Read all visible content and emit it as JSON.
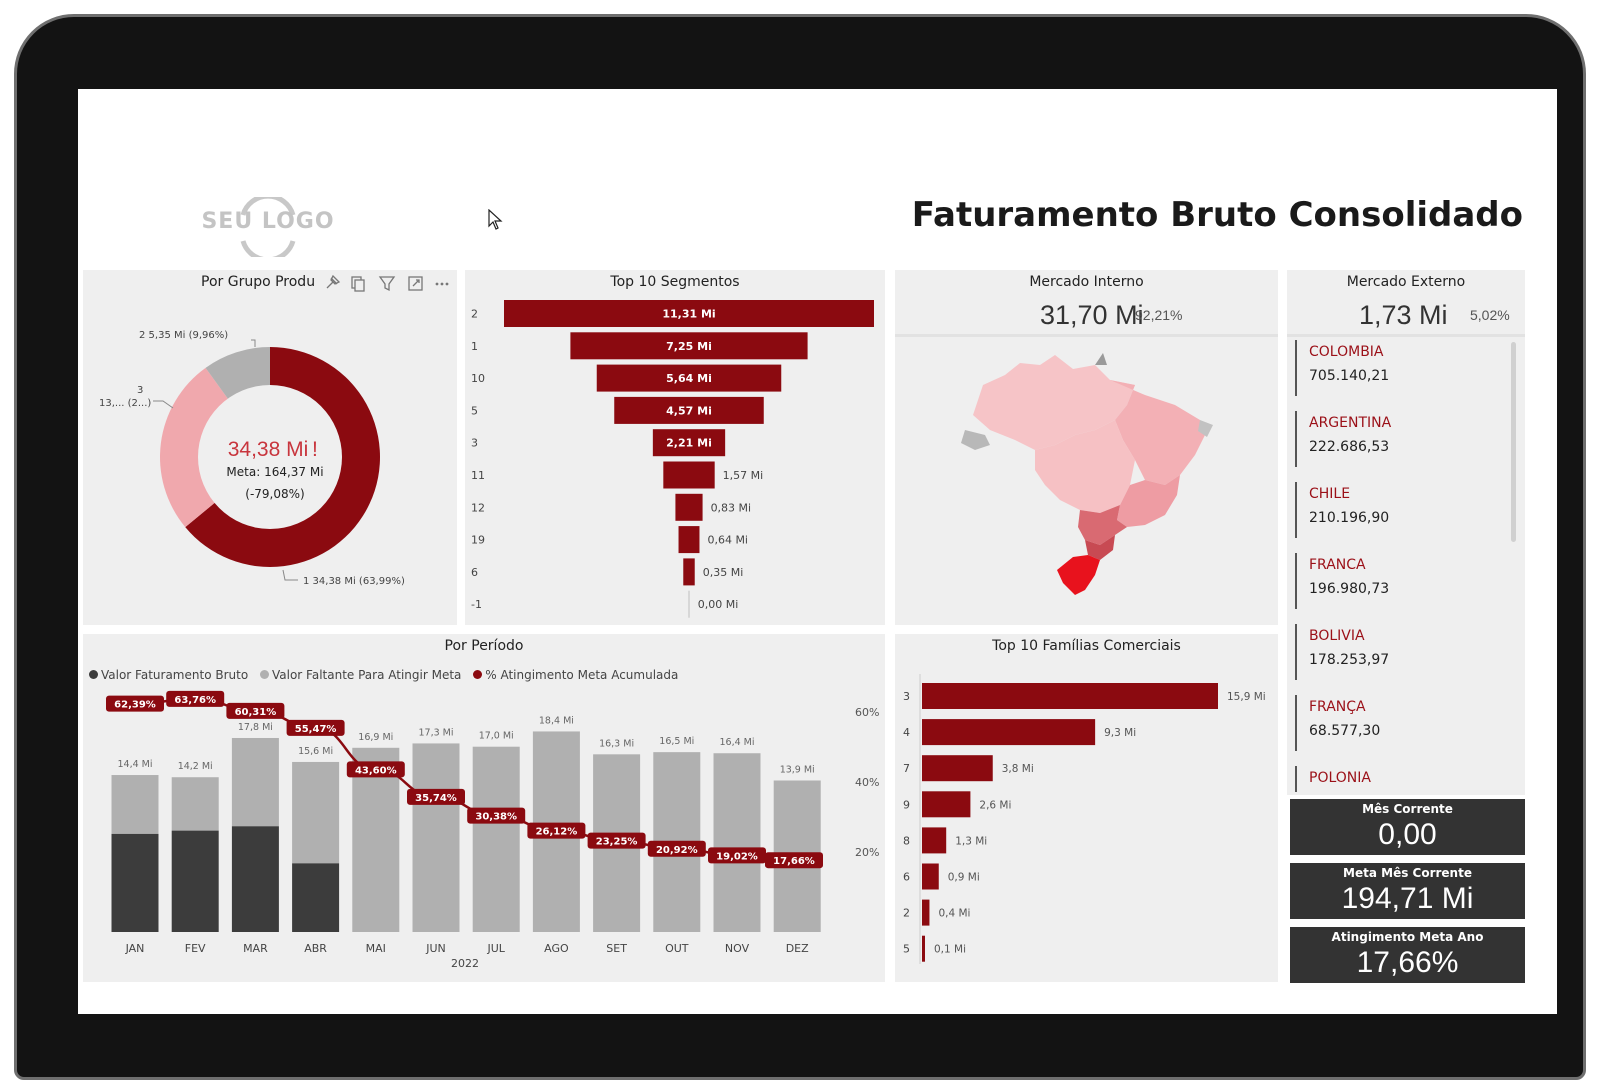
{
  "header": {
    "logo_text": "SEU LOGO",
    "title": "Faturamento Bruto Consolidado"
  },
  "panels": {
    "grupo_produto": {
      "title": "Por Grupo Produ",
      "center_value": "34,38 Mi",
      "center_mark": "!",
      "meta_label": "Meta: 164,37 Mi",
      "meta_delta": "(-79,08%)",
      "slice_labels": [
        "2 5,35 Mi (9,96%)",
        "3",
        "13,... (2...)",
        "1 34,38 Mi (63,99%)"
      ],
      "toolbar_icons": [
        "pin-icon",
        "copy-icon",
        "filter-icon",
        "focus-icon",
        "more-icon"
      ]
    },
    "segmentos": {
      "title": "Top 10 Segmentos"
    },
    "mercado_interno": {
      "title": "Mercado Interno",
      "value": "31,70 Mi",
      "pct": "92,21%"
    },
    "mercado_externo": {
      "title": "Mercado Externo",
      "value": "1,73 Mi",
      "pct": "5,02%",
      "countries": [
        {
          "name": "COLOMBIA",
          "value": "705.140,21"
        },
        {
          "name": "ARGENTINA",
          "value": "222.686,53"
        },
        {
          "name": "CHILE",
          "value": "210.196,90"
        },
        {
          "name": "FRANCA",
          "value": "196.980,73"
        },
        {
          "name": "BOLIVIA",
          "value": "178.253,97"
        },
        {
          "name": "FRANÇA",
          "value": "68.577,30"
        },
        {
          "name": "POLONIA",
          "value": ""
        }
      ]
    },
    "periodo": {
      "title": "Por Período",
      "legend": [
        "Valor Faturamento Bruto",
        "Valor Faltante Para Atingir Meta",
        "% Atingimento Meta Acumulada"
      ],
      "year_label": "2022",
      "y2_ticks": [
        "60%",
        "40%",
        "20%"
      ]
    },
    "familias": {
      "title": "Top 10 Famílias Comerciais"
    }
  },
  "cards": [
    {
      "label": "Mês Corrente",
      "value": "0,00"
    },
    {
      "label": "Meta Mês Corrente",
      "value": "194,71 Mi"
    },
    {
      "label": "Atingimento Meta Ano",
      "value": "17,66%"
    }
  ],
  "colors": {
    "dark_red": "#8b0a10",
    "light_pink": "#f0a8ad",
    "grey": "#b0b0b0",
    "dark_grey": "#3c3c3c",
    "card_bg": "#333333"
  },
  "chart_data": [
    {
      "type": "pie",
      "title": "Por Grupo Produ",
      "categories": [
        "1",
        "3",
        "2"
      ],
      "values": [
        63.99,
        26.05,
        9.96
      ]
    },
    {
      "type": "bar",
      "title": "Top 10 Segmentos",
      "categories": [
        "2",
        "1",
        "10",
        "5",
        "3",
        "11",
        "12",
        "19",
        "6",
        "-1"
      ],
      "values": [
        11.31,
        7.25,
        5.64,
        4.57,
        2.21,
        1.57,
        0.83,
        0.64,
        0.35,
        0.0
      ],
      "value_labels": [
        "11,31 Mi",
        "7,25 Mi",
        "5,64 Mi",
        "4,57 Mi",
        "2,21 Mi",
        "1,57 Mi",
        "0,83 Mi",
        "0,64 Mi",
        "0,35 Mi",
        "0,00 Mi"
      ]
    },
    {
      "type": "bar",
      "title": "Por Período",
      "categories": [
        "JAN",
        "FEV",
        "MAR",
        "ABR",
        "MAI",
        "JUN",
        "JUL",
        "AGO",
        "SET",
        "OUT",
        "NOV",
        "DEZ"
      ],
      "total_labels": [
        "14,4 Mi",
        "14,2 Mi",
        "17,8 Mi",
        "15,6 Mi",
        "16,9 Mi",
        "17,3 Mi",
        "17,0 Mi",
        "18,4 Mi",
        "16,3 Mi",
        "16,5 Mi",
        "16,4 Mi",
        "13,9 Mi"
      ],
      "series": [
        {
          "name": "Valor Faturamento Bruto",
          "values": [
            9.0,
            9.3,
            9.7,
            6.3,
            0,
            0,
            0,
            0,
            0,
            0,
            0,
            0
          ]
        },
        {
          "name": "Valor Faltante Para Atingir Meta",
          "values": [
            5.4,
            4.9,
            8.1,
            9.3,
            16.9,
            17.3,
            17.0,
            18.4,
            16.3,
            16.5,
            16.4,
            13.9
          ]
        },
        {
          "name": "% Atingimento Meta Acumulada",
          "values": [
            62.39,
            63.76,
            60.31,
            55.47,
            43.6,
            35.74,
            30.38,
            26.12,
            23.25,
            20.92,
            19.02,
            17.66
          ],
          "labels": [
            "62,39%",
            "63,76%",
            "60,31%",
            "55,47%",
            "43,60%",
            "35,74%",
            "30,38%",
            "26,12%",
            "23,25%",
            "20,92%",
            "19,02%",
            "17,66%"
          ]
        }
      ],
      "ylim": [
        0,
        20
      ],
      "y2lim": [
        0,
        70
      ],
      "xlabel": "2022"
    },
    {
      "type": "bar",
      "title": "Top 10 Famílias Comerciais",
      "categories": [
        "3",
        "4",
        "7",
        "9",
        "8",
        "6",
        "2",
        "5"
      ],
      "values": [
        15.9,
        9.3,
        3.8,
        2.6,
        1.3,
        0.9,
        0.4,
        0.1
      ],
      "value_labels": [
        "15,9 Mi",
        "9,3 Mi",
        "3,8 Mi",
        "2,6 Mi",
        "1,3 Mi",
        "0,9 Mi",
        "0,4 Mi",
        "0,1 Mi"
      ]
    }
  ]
}
